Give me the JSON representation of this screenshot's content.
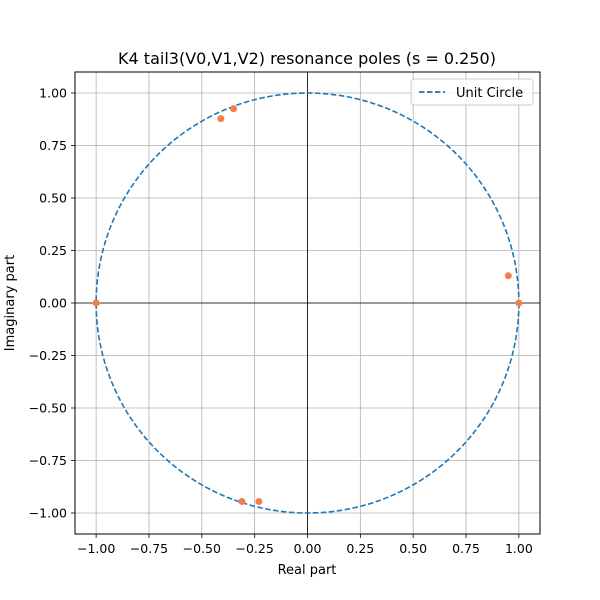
{
  "chart_data": {
    "type": "scatter",
    "title": "K4 tail3(V0,V1,V2) resonance poles (s = 0.250)",
    "xlabel": "Real part",
    "ylabel": "Imaginary part",
    "xlim": [
      -1.1,
      1.1
    ],
    "ylim": [
      -1.1,
      1.1
    ],
    "x_ticks": [
      -1.0,
      -0.75,
      -0.5,
      -0.25,
      0.0,
      0.25,
      0.5,
      0.75,
      1.0
    ],
    "y_ticks": [
      -1.0,
      -0.75,
      -0.5,
      -0.25,
      0.0,
      0.25,
      0.5,
      0.75,
      1.0
    ],
    "x_tick_labels": [
      "−1.00",
      "−0.75",
      "−0.50",
      "−0.25",
      "0.00",
      "0.25",
      "0.50",
      "0.75",
      "1.00"
    ],
    "y_tick_labels": [
      "−1.00",
      "−0.75",
      "−0.50",
      "−0.25",
      "0.00",
      "0.25",
      "0.50",
      "0.75",
      "1.00"
    ],
    "grid": true,
    "zero_lines": true,
    "legend": {
      "placement": "top-right",
      "entries": [
        {
          "label": "Unit Circle",
          "style": "dashed",
          "color": "#1f77b4"
        }
      ]
    },
    "unit_circle": {
      "radius": 1.0,
      "color": "#1f77b4"
    },
    "points_color": "#f07f4c",
    "points": [
      {
        "x": -0.35,
        "y": 0.925
      },
      {
        "x": -0.41,
        "y": 0.878
      },
      {
        "x": 0.95,
        "y": 0.13
      },
      {
        "x": 1.0,
        "y": 0.0
      },
      {
        "x": -1.0,
        "y": 0.0
      },
      {
        "x": -0.31,
        "y": -0.945
      },
      {
        "x": -0.23,
        "y": -0.945
      }
    ]
  }
}
